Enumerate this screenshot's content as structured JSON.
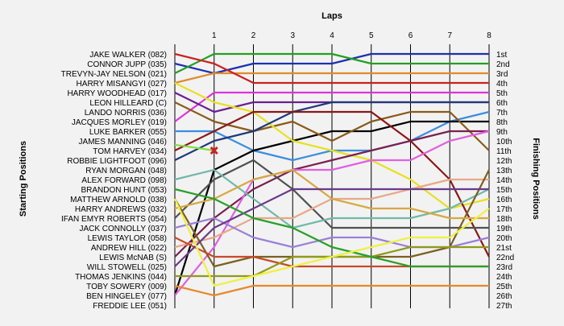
{
  "chart_data": {
    "type": "line",
    "title": "",
    "xlabel": "Laps",
    "ylabel_left": "Starting Positions",
    "ylabel_right": "Finishing Positions",
    "x": [
      0,
      1,
      2,
      3,
      4,
      5,
      6,
      7,
      8
    ],
    "x_tick_labels": [
      "1",
      "2",
      "3",
      "4",
      "5",
      "6",
      "7",
      "8"
    ],
    "xlim": [
      0,
      8
    ],
    "y_inverted": true,
    "ylim": [
      1,
      27
    ],
    "grid": "vertical",
    "start_labels": [
      "JAKE WALKER (082)",
      "CONNOR JUPP (035)",
      "TREVYN-JAY NELSON (021)",
      "HARRY MISANGYI (027)",
      "HARRY WOODHEAD (017)",
      "LEON HILLEARD (C)",
      "LANDO NORRIS (036)",
      "JACQUES MORLEY (019)",
      "LUKE BARKER (055)",
      "JAMES MANNING (046)",
      "TOM HARVEY (034)",
      "ROBBIE LIGHTFOOT (096)",
      "RYAN MORGAN (048)",
      "ALEX FORWARD (098)",
      "BRANDON HUNT (053)",
      "MATTHEW ARNOLD (038)",
      "HARRY ANDREWS (032)",
      "IFAN EMYR ROBERTS (054)",
      "JACK CONNOLLY (037)",
      "LEWIS TAYLOR (058)",
      "ANDREW HILL (022)",
      "LEWIS McNAB (S)",
      "WILL STOWELL (025)",
      "THOMAS JENKINS (044)",
      "TOBY SOWERY (009)",
      "BEN HINGELEY (077)",
      "FREDDIE LEE (051)"
    ],
    "finish_labels": [
      "1st",
      "2nd",
      "3rd",
      "4th",
      "5th",
      "6th",
      "7th",
      "8th",
      "9th",
      "10th",
      "11th",
      "12th",
      "13th",
      "14th",
      "15th",
      "16th",
      "17th",
      "18th",
      "19th",
      "20th",
      "21st",
      "22nd",
      "23rd",
      "24th",
      "25th",
      "26th",
      "27th"
    ],
    "series": [
      {
        "color": "#1e2fb0",
        "values": [
          2,
          3,
          2,
          2,
          2,
          1,
          1,
          1,
          1
        ]
      },
      {
        "color": "#22a022",
        "values": [
          3,
          1,
          1,
          1,
          1,
          2,
          2,
          2,
          2
        ]
      },
      {
        "color": "#e08a2a",
        "values": [
          4,
          3,
          3,
          3,
          3,
          3,
          3,
          3,
          3
        ]
      },
      {
        "color": "#cc2020",
        "values": [
          1,
          2,
          4,
          4,
          4,
          4,
          4,
          4,
          4
        ]
      },
      {
        "color": "#dd33dd",
        "values": [
          8,
          5,
          5,
          5,
          5,
          5,
          5,
          5,
          5
        ]
      },
      {
        "color": "#6a2090",
        "values": [
          5,
          7,
          6,
          6,
          6,
          6,
          6,
          6,
          6
        ]
      },
      {
        "color": "#3a8ee0",
        "values": [
          9,
          9,
          11,
          12,
          11,
          11,
          10,
          8,
          7
        ]
      },
      {
        "color": "#000000",
        "values": [
          26,
          13,
          11,
          10,
          9,
          9,
          8,
          8,
          8
        ]
      },
      {
        "color": "#8a5a18",
        "values": [
          6,
          8,
          9,
          8,
          10,
          8,
          7,
          7,
          11
        ]
      },
      {
        "color": "#e8e020",
        "values": [
          4,
          6,
          7,
          10,
          11,
          12,
          14,
          17,
          16
        ]
      },
      {
        "color": "#1e3a7a",
        "values": [
          12,
          10,
          9,
          7,
          6,
          6,
          6,
          6,
          6
        ]
      },
      {
        "color": "#8a1818",
        "values": [
          11,
          9,
          7,
          7,
          7,
          7,
          10,
          14,
          22
        ]
      },
      {
        "color": "#7a2050",
        "values": [
          22,
          18,
          15,
          13,
          12,
          11,
          10,
          9,
          9
        ]
      },
      {
        "color": "#e060e0",
        "values": [
          26,
          21,
          14,
          13,
          13,
          12,
          12,
          10,
          9
        ]
      },
      {
        "color": "#505050",
        "values": [
          18,
          14,
          12,
          15,
          19,
          19,
          19,
          19,
          19
        ]
      },
      {
        "color": "#70b8a8",
        "values": [
          14,
          13,
          16,
          19,
          18,
          18,
          18,
          17,
          15
        ]
      },
      {
        "color": "#e8a888",
        "values": [
          21,
          20,
          18,
          18,
          16,
          16,
          15,
          14,
          14
        ]
      },
      {
        "color": "#7a6020",
        "values": [
          16,
          23,
          22,
          22,
          22,
          22,
          22,
          21,
          13
        ]
      },
      {
        "color": "#d8a840",
        "values": [
          17,
          16,
          14,
          13,
          16,
          17,
          17,
          18,
          18
        ]
      },
      {
        "color": "#c84a28",
        "values": [
          20,
          22,
          22,
          23,
          23,
          23,
          23,
          23,
          23
        ]
      },
      {
        "color": "#9a80d8",
        "values": [
          19,
          18,
          20,
          21,
          20,
          20,
          21,
          21,
          20
        ]
      },
      {
        "color": "#6a3a8a",
        "values": [
          23,
          19,
          17,
          15,
          15,
          15,
          15,
          15,
          15
        ]
      },
      {
        "color": "#909a18",
        "values": [
          24,
          24,
          24,
          22,
          22,
          22,
          21,
          21,
          21
        ]
      },
      {
        "color": "#28a028",
        "values": [
          15,
          16,
          18,
          19,
          21,
          22,
          23,
          23,
          23
        ]
      },
      {
        "color": "#f0f040",
        "values": [
          16,
          25,
          24,
          23,
          22,
          21,
          20,
          20,
          17
        ]
      },
      {
        "color": "#e8882a",
        "values": [
          25,
          26,
          25,
          25,
          25,
          25,
          25,
          25,
          25
        ]
      }
    ],
    "retired": {
      "start_position": 11,
      "last_lap": 1,
      "color": "#d02020",
      "marker": "x"
    }
  }
}
